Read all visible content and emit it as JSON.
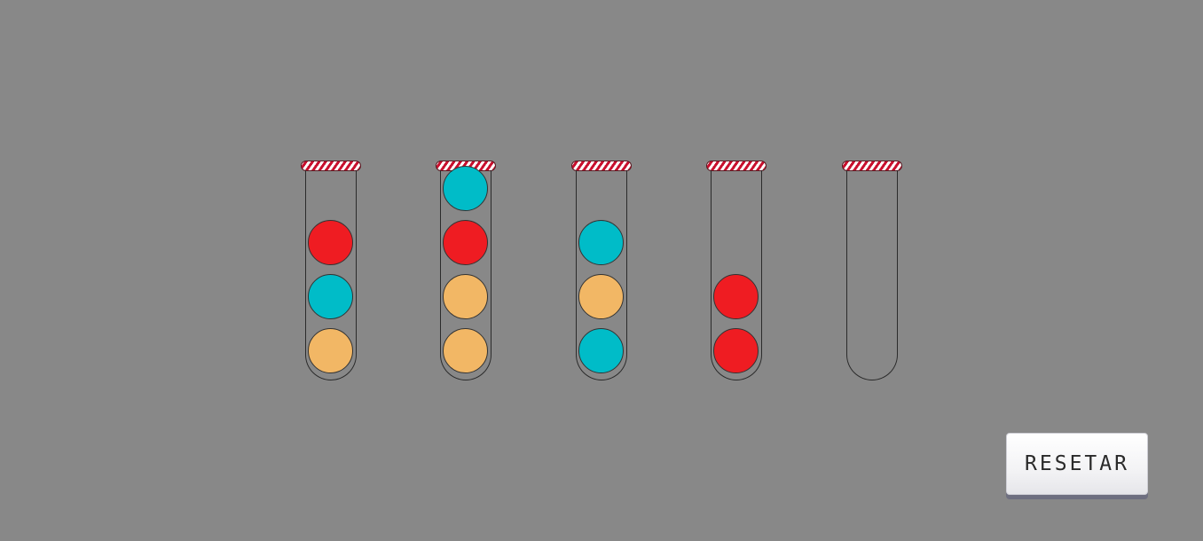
{
  "game": {
    "name": "ball-sort",
    "colors": {
      "background": "#888888",
      "red": "#ef1c22",
      "cyan": "#00bcc8",
      "orange": "#f2b765",
      "cap_stripe": "#c8102e"
    },
    "capacity": 4,
    "tubes": [
      {
        "balls_bottom_to_top": [
          "orange",
          "cyan",
          "red"
        ]
      },
      {
        "balls_bottom_to_top": [
          "orange",
          "orange",
          "red",
          "cyan"
        ]
      },
      {
        "balls_bottom_to_top": [
          "cyan",
          "orange",
          "cyan"
        ]
      },
      {
        "balls_bottom_to_top": [
          "red",
          "red"
        ]
      },
      {
        "balls_bottom_to_top": []
      }
    ]
  },
  "controls": {
    "reset_label": "RESETAR"
  }
}
